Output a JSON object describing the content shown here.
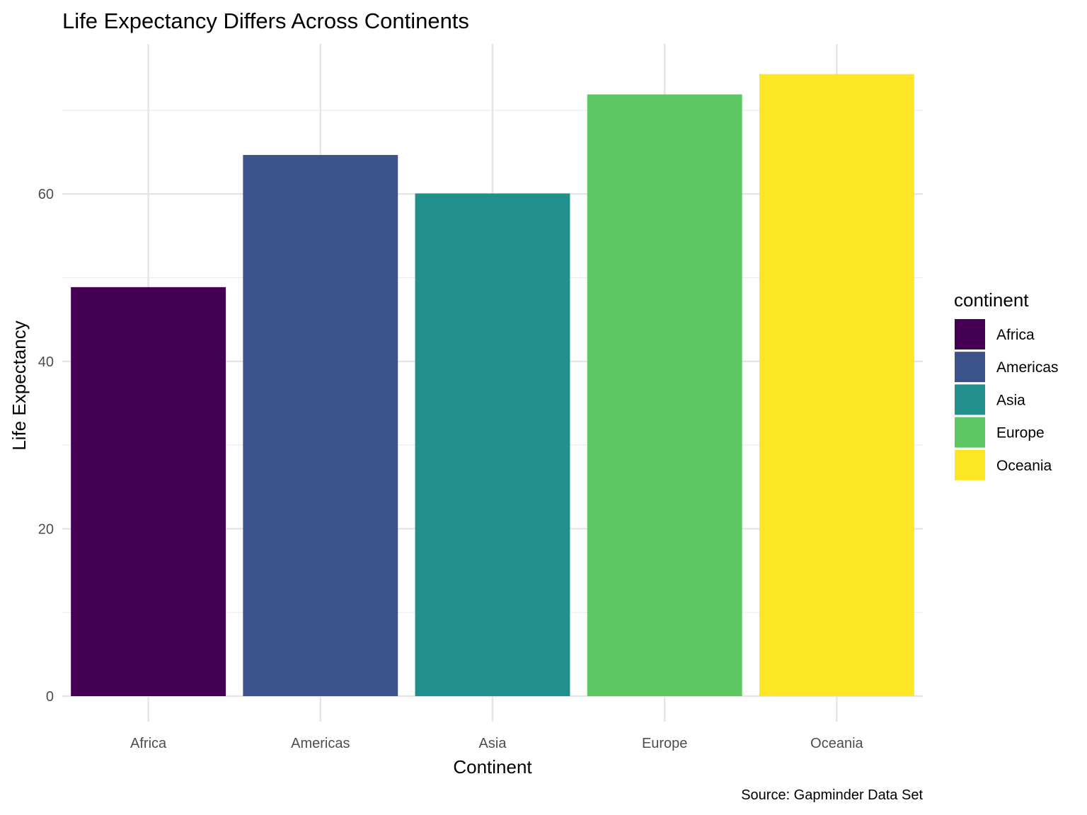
{
  "chart_data": {
    "type": "bar",
    "title": "Life Expectancy Differs Across Continents",
    "xlabel": "Continent",
    "ylabel": "Life Expectancy",
    "caption": "Source: Gapminder Data Set",
    "categories": [
      "Africa",
      "Americas",
      "Asia",
      "Europe",
      "Oceania"
    ],
    "values": [
      48.87,
      64.66,
      60.06,
      71.9,
      74.33
    ],
    "colors": [
      "#440154",
      "#3B528B",
      "#21908C",
      "#5DC863",
      "#FDE725"
    ],
    "ylim": [
      0,
      78
    ],
    "yticks": [
      0,
      20,
      40,
      60
    ],
    "grid": true,
    "legend": {
      "title": "continent",
      "position": "right",
      "items": [
        "Africa",
        "Americas",
        "Asia",
        "Europe",
        "Oceania"
      ]
    }
  }
}
